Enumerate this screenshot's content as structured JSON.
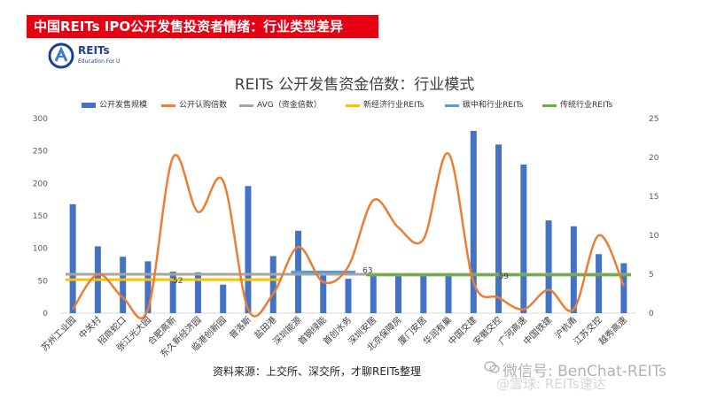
{
  "banner": {
    "title": "中国REITs IPO公开发售投资者情绪：行业类型差异"
  },
  "logo": {
    "name": "REITs",
    "tagline": "Education For U"
  },
  "chart_data": {
    "type": "bar",
    "title": "REITs 公开发售资金倍数：行业模式",
    "categories": [
      "苏州工业园",
      "中关村",
      "招商蛇口",
      "张江光大园",
      "合肥高新",
      "东久新经济园",
      "临港创新园",
      "普洛斯",
      "盐田港",
      "深圳能源",
      "首钢绿能",
      "首创水务",
      "深圳安居",
      "北京保障房",
      "厦门安居",
      "华润有巢",
      "中国交建",
      "安徽交控",
      "广河高速",
      "中国铁建",
      "沪杭甬",
      "江苏交控",
      "越秀高速"
    ],
    "series": [
      {
        "name": "公开发售规模",
        "axis": "left",
        "kind": "bar",
        "color": "#4472c4",
        "values": [
          168,
          103,
          87,
          80,
          64,
          63,
          44,
          196,
          88,
          127,
          62,
          53,
          57,
          57,
          57,
          57,
          281,
          260,
          229,
          143,
          134,
          91,
          77
        ]
      },
      {
        "name": "公开认购倍数",
        "axis": "right",
        "kind": "line",
        "color": "#ed7d31",
        "values": [
          0.5,
          5,
          2,
          0.5,
          20,
          13,
          17,
          0.5,
          2.5,
          8.5,
          4,
          6,
          14.5,
          11,
          9.5,
          20.5,
          4,
          2,
          0.5,
          3,
          0.5,
          10,
          3.5
        ]
      }
    ],
    "averages": [
      {
        "name": "AVG（资金倍数）",
        "color": "#a5a5a5",
        "value": 5.0,
        "from": 0,
        "to": 22
      },
      {
        "name": "新经济行业REITs",
        "color": "#ffc000",
        "value": 4.3,
        "from": 0,
        "to": 8,
        "label": "52"
      },
      {
        "name": "碳中和行业REITs",
        "color": "#5b9bd5",
        "value": 5.3,
        "from": 9,
        "to": 11,
        "label": "63"
      },
      {
        "name": "传统行业REITs",
        "color": "#70ad47",
        "value": 4.9,
        "from": 12,
        "to": 22,
        "label": "59"
      }
    ],
    "left_axis": {
      "min": 0,
      "max": 300,
      "ticks": [
        "0",
        "50",
        "100",
        "150",
        "200",
        "250",
        "300"
      ]
    },
    "right_axis": {
      "min": 0,
      "max": 25,
      "ticks": [
        "0",
        "5",
        "10",
        "15",
        "20",
        "25"
      ]
    },
    "legend_position": "top",
    "grid": false
  },
  "footer": {
    "source": "资料来源：上交所、深交所，才聊REITs整理",
    "watermark": "微信号: BenChat-REITs",
    "watermark2": "@雪球: REITs速达"
  },
  "colors": {
    "banner": "#e60012",
    "bar": "#4472c4",
    "line": "#ed7d31"
  }
}
